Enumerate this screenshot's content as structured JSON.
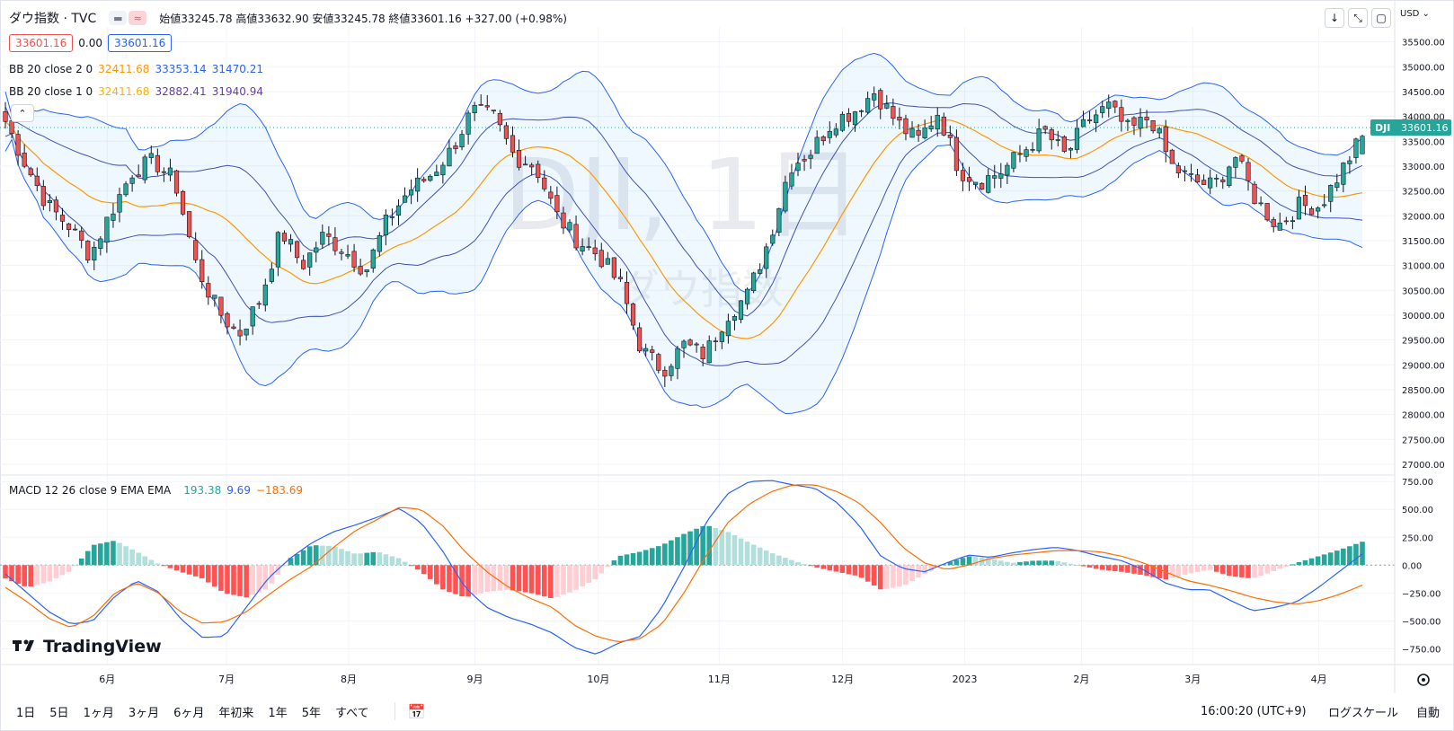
{
  "header": {
    "symbol": "ダウ指数 · TVC",
    "ohlc_text": "始値33245.78 高値33632.90 安値33245.78 終値33601.16 +327.00 (+0.98%)",
    "bid": "33601.16",
    "spread": "0.00",
    "ask": "33601.16",
    "bb1_label": "BB 20 close 2 0",
    "bb1_vals": [
      "32411.68",
      "33353.14",
      "31470.21"
    ],
    "bb2_label": "BB 20 close 1 0",
    "bb2_vals": [
      "32411.68",
      "32882.41",
      "31940.94"
    ],
    "macd_label": "MACD 12 26 close 9 EMA EMA",
    "macd_vals": [
      "193.38",
      "9.69",
      "−183.69"
    ],
    "currency": "USD",
    "watermark_big": "DJI, 1日",
    "watermark_small": "ダウ指数",
    "price_tag_symbol": "DJI",
    "price_tag_value": "33601.16",
    "logo": "TradingView"
  },
  "colors": {
    "up": "#26a69a",
    "down": "#ef5350",
    "bb_middle": "#ff9800",
    "bb_band": "#2962ff",
    "macd_line": "#2962ff",
    "signal_line": "#ff6d00",
    "hist_up_strong": "#26a69a",
    "hist_up_weak": "#b2dfdb",
    "hist_down_strong": "#ff5252",
    "hist_down_weak": "#ffcdd2"
  },
  "bottom": {
    "ranges": [
      "1日",
      "5日",
      "1ヶ月",
      "3ヶ月",
      "6ヶ月",
      "年初来",
      "1年",
      "5年",
      "すべて"
    ],
    "time": "16:00:20 (UTC+9)",
    "log_scale": "ログスケール",
    "auto": "自動"
  },
  "chart_data": [
    {
      "type": "candlestick",
      "title": "ダウ指数 · TVC",
      "x_ticks": [
        "6月",
        "7月",
        "8月",
        "9月",
        "10月",
        "11月",
        "12月",
        "2023",
        "2月",
        "3月",
        "4月"
      ],
      "y_ticks": [
        "35500.00",
        "35000.00",
        "34500.00",
        "34000.00",
        "33500.00",
        "33000.00",
        "32500.00",
        "32000.00",
        "31500.00",
        "31000.00",
        "30500.00",
        "30000.00",
        "29500.00",
        "29000.00",
        "28500.00",
        "28000.00",
        "27500.00",
        "27000.00"
      ],
      "ylim": [
        26800,
        35800
      ],
      "last_close": 33601.16,
      "close_path": [
        33900,
        33000,
        32200,
        31800,
        31200,
        32100,
        32900,
        33100,
        32700,
        31000,
        30100,
        29600,
        30300,
        31700,
        31000,
        31600,
        31300,
        30900,
        31900,
        32500,
        32800,
        33300,
        34100,
        34000,
        33200,
        33000,
        32000,
        31500,
        31200,
        30600,
        29300,
        28900,
        29400,
        29200,
        30000,
        30400,
        31500,
        33000,
        33300,
        33900,
        34100,
        34500,
        33900,
        33500,
        34100,
        32900,
        32700,
        32900,
        33300,
        33700,
        33200,
        33900,
        34200,
        33700,
        34000,
        33000,
        32700,
        32600,
        33200,
        32300,
        31800,
        32200,
        32200,
        32900,
        33600
      ]
    },
    {
      "type": "line",
      "title": "MACD 12 26 close 9 EMA EMA",
      "y_ticks": [
        "750.00",
        "500.00",
        "250.00",
        "0.00",
        "−250.00",
        "−500.00",
        "−750.00"
      ],
      "ylim": [
        -860,
        800
      ],
      "macd_path": [
        -80,
        -250,
        -420,
        -530,
        -500,
        -280,
        -140,
        -240,
        -480,
        -650,
        -640,
        -380,
        -120,
        60,
        200,
        300,
        360,
        430,
        510,
        380,
        120,
        -200,
        -380,
        -470,
        -530,
        -610,
        -740,
        -800,
        -700,
        -640,
        -380,
        -20,
        380,
        640,
        750,
        760,
        720,
        690,
        560,
        360,
        80,
        -30,
        -60,
        20,
        90,
        70,
        110,
        140,
        160,
        130,
        80,
        40,
        -40,
        -160,
        -220,
        -220,
        -320,
        -410,
        -380,
        -330,
        -200,
        -50,
        100
      ],
      "signal_path": [
        -200,
        -330,
        -480,
        -560,
        -460,
        -250,
        -160,
        -250,
        -420,
        -520,
        -510,
        -420,
        -270,
        -130,
        -10,
        160,
        310,
        410,
        520,
        500,
        350,
        120,
        -60,
        -200,
        -300,
        -380,
        -540,
        -640,
        -690,
        -660,
        -530,
        -250,
        80,
        380,
        550,
        660,
        720,
        720,
        660,
        560,
        380,
        160,
        20,
        -40,
        0,
        60,
        90,
        110,
        130,
        130,
        120,
        80,
        20,
        -60,
        -140,
        -180,
        -230,
        -290,
        -330,
        -350,
        -320,
        -260,
        -180
      ],
      "hist_path": [
        -120,
        -200,
        -150,
        -50,
        180,
        220,
        120,
        10,
        -60,
        -120,
        -250,
        -290,
        -210,
        60,
        180,
        170,
        100,
        120,
        60,
        -60,
        -220,
        -290,
        -240,
        -220,
        -250,
        -300,
        -230,
        -120,
        80,
        120,
        180,
        280,
        360,
        300,
        200,
        110,
        40,
        -20,
        -60,
        -100,
        -220,
        -190,
        -80,
        20,
        80,
        60,
        20,
        40,
        40,
        0,
        -40,
        -60,
        -90,
        -130,
        -80,
        -40,
        -100,
        -120,
        -50,
        20,
        80,
        140,
        210
      ]
    }
  ]
}
